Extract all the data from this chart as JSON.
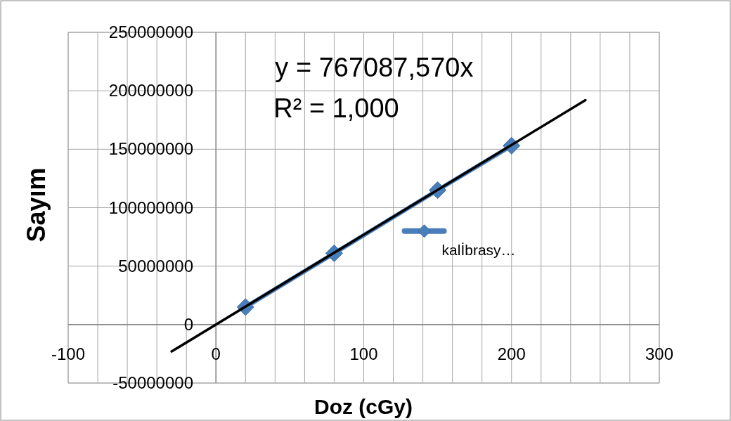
{
  "chart_data": {
    "type": "line",
    "xlabel": "Doz (cGy)",
    "ylabel": "Sayım",
    "x": [
      20,
      80,
      150,
      200
    ],
    "series": [
      {
        "name": "kalİbrasy…",
        "color": "#4a7ebb",
        "values": [
          15000000,
          61000000,
          115000000,
          153000000
        ],
        "marker": "diamond"
      },
      {
        "type": "line",
        "color": "#000000",
        "x": [
          -30,
          250
        ],
        "values": [
          -23000000,
          192000000
        ],
        "marker": "none"
      }
    ],
    "xlim": [
      -100,
      300
    ],
    "ylim": [
      -50000000,
      250000000
    ],
    "xticks": [
      -100,
      {
        "value": -80,
        "label": null
      },
      {
        "value": -60,
        "label": null
      },
      {
        "value": -40,
        "label": null
      },
      {
        "value": -20,
        "label": null
      },
      0,
      {
        "value": 20,
        "label": null
      },
      {
        "value": 40,
        "label": null
      },
      {
        "value": 60,
        "label": null
      },
      {
        "value": 80,
        "label": null
      },
      100,
      {
        "value": 120,
        "label": null
      },
      {
        "value": 140,
        "label": null
      },
      {
        "value": 160,
        "label": null
      },
      {
        "value": 180,
        "label": null
      },
      200,
      {
        "value": 220,
        "label": null
      },
      {
        "value": 240,
        "label": null
      },
      {
        "value": 260,
        "label": null
      },
      {
        "value": 280,
        "label": null
      },
      300
    ],
    "yticks": [
      -50000000,
      0,
      50000000,
      100000000,
      150000000,
      200000000,
      250000000
    ],
    "grid": true,
    "legend": "right",
    "annotations": [
      "y = 767087,570x",
      "R² = 1,000"
    ]
  }
}
